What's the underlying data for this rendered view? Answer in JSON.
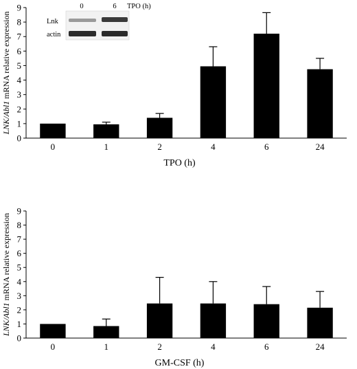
{
  "chart_data": [
    {
      "type": "bar",
      "categories": [
        "0",
        "1",
        "2",
        "4",
        "6",
        "24"
      ],
      "values": [
        1.0,
        0.95,
        1.4,
        4.95,
        7.2,
        4.75
      ],
      "errors": [
        0.0,
        0.15,
        0.3,
        1.35,
        1.45,
        0.75
      ],
      "xlabel": "TPO (h)",
      "ylabel_italic": "LNK/Abl1",
      "ylabel_rest": " mRNA relative expression",
      "ylim": [
        0,
        9
      ],
      "yticks": [
        "0",
        "1",
        "2",
        "3",
        "4",
        "5",
        "6",
        "7",
        "8",
        "9"
      ],
      "bar_color": "#000000",
      "inset": {
        "time_labels": [
          "0",
          "6"
        ],
        "unit_label": "TPO (h)",
        "row_labels": [
          "Lnk",
          "actin"
        ]
      }
    },
    {
      "type": "bar",
      "categories": [
        "0",
        "1",
        "2",
        "4",
        "6",
        "24"
      ],
      "values": [
        1.0,
        0.85,
        2.45,
        2.45,
        2.4,
        2.15
      ],
      "errors": [
        0.0,
        0.5,
        1.85,
        1.55,
        1.25,
        1.15
      ],
      "xlabel": "GM-CSF (h)",
      "ylabel_italic": "LNK/Abl1",
      "ylabel_rest": " mRNA relative expression",
      "ylim": [
        0,
        9
      ],
      "yticks": [
        "0",
        "1",
        "2",
        "3",
        "4",
        "5",
        "6",
        "7",
        "8",
        "9"
      ],
      "bar_color": "#000000"
    }
  ]
}
